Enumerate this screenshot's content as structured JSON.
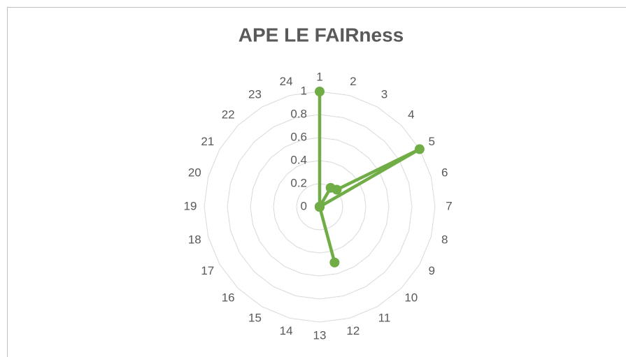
{
  "chart_data": {
    "type": "radar",
    "title": "APE LE FAIRness",
    "categories": [
      "1",
      "2",
      "3",
      "4",
      "5",
      "6",
      "7",
      "8",
      "9",
      "10",
      "11",
      "12",
      "13",
      "14",
      "15",
      "16",
      "17",
      "18",
      "19",
      "20",
      "21",
      "22",
      "23",
      "24"
    ],
    "values": [
      1,
      0,
      0.19,
      0.21,
      1,
      0,
      0,
      0,
      0,
      0,
      0,
      0.5,
      0,
      0,
      0,
      0,
      0,
      0,
      0,
      0,
      0,
      0,
      0,
      0
    ],
    "color": "#70ad47",
    "ylim": [
      0,
      1
    ],
    "yticks": [
      0,
      0.2,
      0.4,
      0.6,
      0.8,
      1
    ],
    "grid": true
  }
}
